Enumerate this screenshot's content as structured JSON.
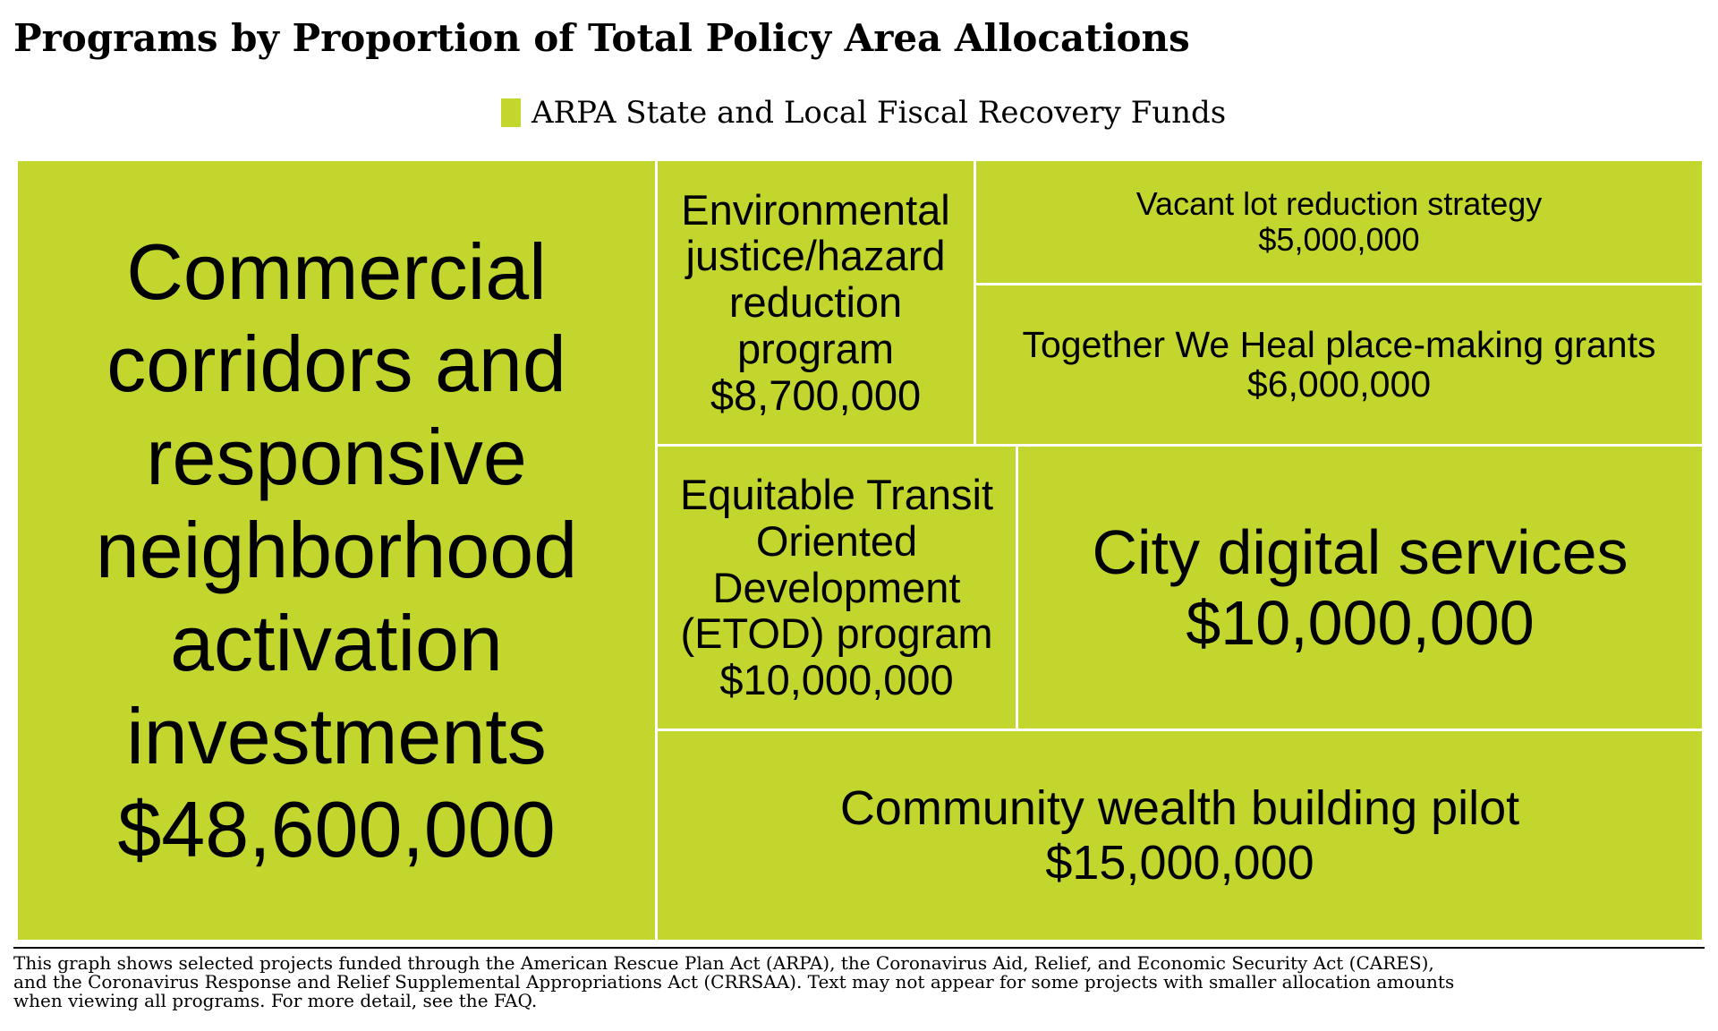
{
  "chart_data": {
    "type": "treemap",
    "title": "Programs by Proportion of Total Policy Area Allocations",
    "series": [
      {
        "name": "ARPA State and Local Fiscal Recovery Funds",
        "color": "#c2d62e"
      }
    ],
    "items": [
      {
        "name": "Commercial corridors and responsive neighborhood activation investments",
        "value_label": "$48,600,000",
        "value": 48600000
      },
      {
        "name": "Community wealth building pilot",
        "value_label": "$15,000,000",
        "value": 15000000
      },
      {
        "name": "City digital services",
        "value_label": "$10,000,000",
        "value": 10000000
      },
      {
        "name": "Equitable Transit Oriented Development (ETOD) program",
        "value_label": "$10,000,000",
        "value": 10000000
      },
      {
        "name": "Environmental justice/hazard reduction program",
        "value_label": "$8,700,000",
        "value": 8700000
      },
      {
        "name": "Together We Heal place-making grants",
        "value_label": "$6,000,000",
        "value": 6000000
      },
      {
        "name": "Vacant lot reduction strategy",
        "value_label": "$5,000,000",
        "value": 5000000
      }
    ]
  },
  "footnote": {
    "lines": [
      "This graph shows selected projects funded through the American Rescue Plan Act (ARPA), the Coronavirus Aid, Relief, and Economic Security Act (CARES),",
      "and the Coronavirus Response and Relief Supplemental Appropriations Act (CRRSAA). Text may not appear for some projects with smaller allocation amounts",
      " when viewing all programs. For more detail, see the FAQ."
    ]
  }
}
